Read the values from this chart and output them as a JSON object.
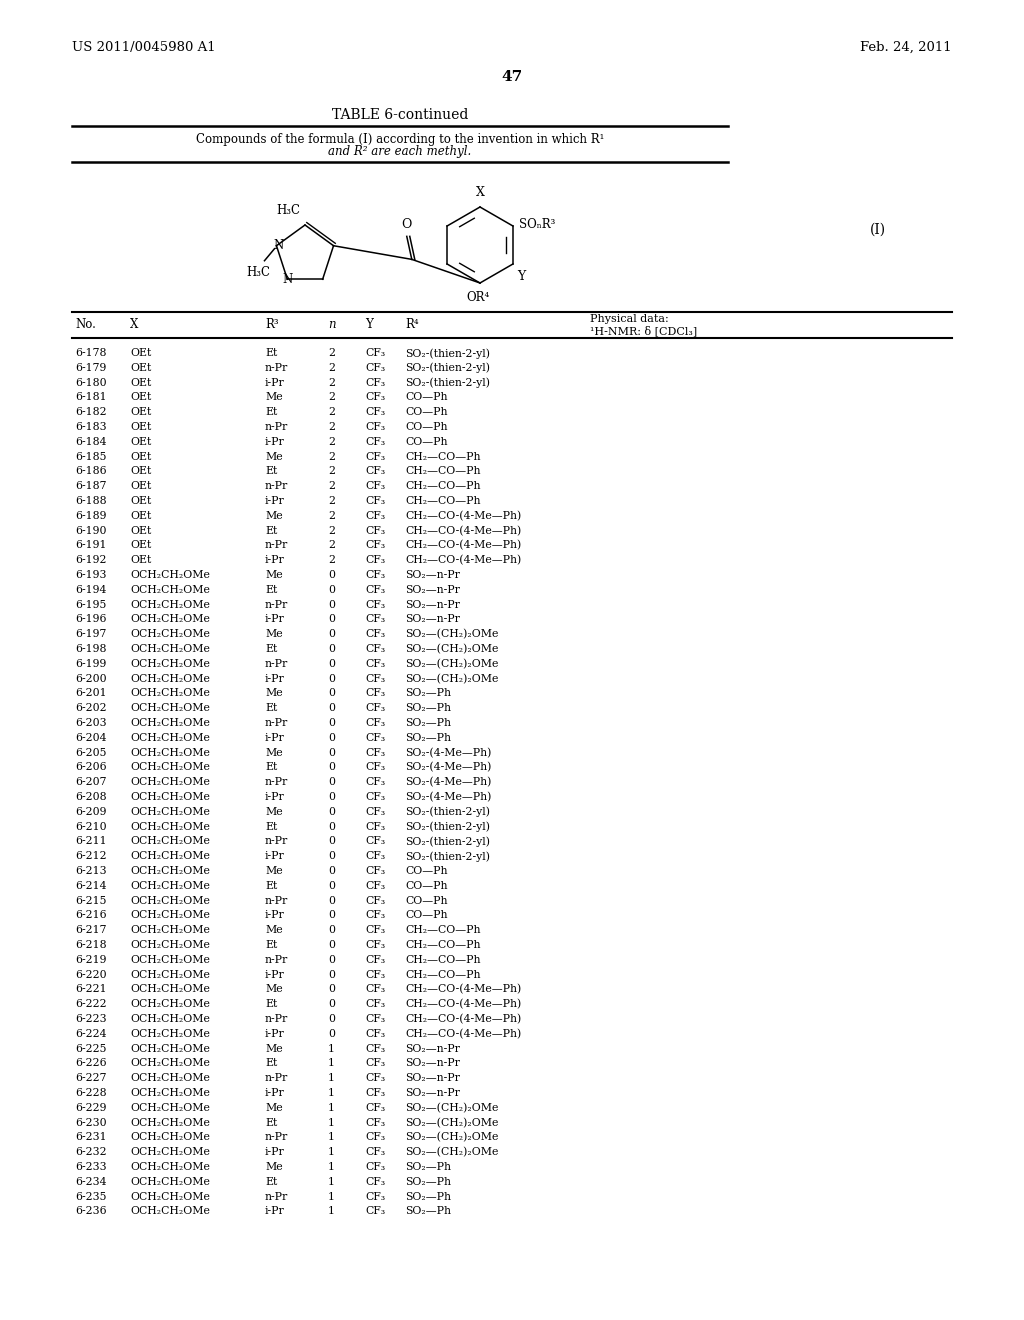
{
  "header_left": "US 2011/0045980 A1",
  "header_right": "Feb. 24, 2011",
  "page_number": "47",
  "table_title": "TABLE 6-continued",
  "table_subtitle1": "Compounds of the formula (I) according to the invention in which R¹",
  "table_subtitle2": "and R² are each methyl.",
  "formula_label": "(I)",
  "rows": [
    [
      "6-178",
      "OEt",
      "Et",
      "2",
      "CF₃",
      "SO₂-(thien-2-yl)"
    ],
    [
      "6-179",
      "OEt",
      "n-Pr",
      "2",
      "CF₃",
      "SO₂-(thien-2-yl)"
    ],
    [
      "6-180",
      "OEt",
      "i-Pr",
      "2",
      "CF₃",
      "SO₂-(thien-2-yl)"
    ],
    [
      "6-181",
      "OEt",
      "Me",
      "2",
      "CF₃",
      "CO—Ph"
    ],
    [
      "6-182",
      "OEt",
      "Et",
      "2",
      "CF₃",
      "CO—Ph"
    ],
    [
      "6-183",
      "OEt",
      "n-Pr",
      "2",
      "CF₃",
      "CO—Ph"
    ],
    [
      "6-184",
      "OEt",
      "i-Pr",
      "2",
      "CF₃",
      "CO—Ph"
    ],
    [
      "6-185",
      "OEt",
      "Me",
      "2",
      "CF₃",
      "CH₂—CO—Ph"
    ],
    [
      "6-186",
      "OEt",
      "Et",
      "2",
      "CF₃",
      "CH₂—CO—Ph"
    ],
    [
      "6-187",
      "OEt",
      "n-Pr",
      "2",
      "CF₃",
      "CH₂—CO—Ph"
    ],
    [
      "6-188",
      "OEt",
      "i-Pr",
      "2",
      "CF₃",
      "CH₂—CO—Ph"
    ],
    [
      "6-189",
      "OEt",
      "Me",
      "2",
      "CF₃",
      "CH₂—CO-(4-Me—Ph)"
    ],
    [
      "6-190",
      "OEt",
      "Et",
      "2",
      "CF₃",
      "CH₂—CO-(4-Me—Ph)"
    ],
    [
      "6-191",
      "OEt",
      "n-Pr",
      "2",
      "CF₃",
      "CH₂—CO-(4-Me—Ph)"
    ],
    [
      "6-192",
      "OEt",
      "i-Pr",
      "2",
      "CF₃",
      "CH₂—CO-(4-Me—Ph)"
    ],
    [
      "6-193",
      "OCH₂CH₂OMe",
      "Me",
      "0",
      "CF₃",
      "SO₂—n-Pr"
    ],
    [
      "6-194",
      "OCH₂CH₂OMe",
      "Et",
      "0",
      "CF₃",
      "SO₂—n-Pr"
    ],
    [
      "6-195",
      "OCH₂CH₂OMe",
      "n-Pr",
      "0",
      "CF₃",
      "SO₂—n-Pr"
    ],
    [
      "6-196",
      "OCH₂CH₂OMe",
      "i-Pr",
      "0",
      "CF₃",
      "SO₂—n-Pr"
    ],
    [
      "6-197",
      "OCH₂CH₂OMe",
      "Me",
      "0",
      "CF₃",
      "SO₂—(CH₂)₂OMe"
    ],
    [
      "6-198",
      "OCH₂CH₂OMe",
      "Et",
      "0",
      "CF₃",
      "SO₂—(CH₂)₂OMe"
    ],
    [
      "6-199",
      "OCH₂CH₂OMe",
      "n-Pr",
      "0",
      "CF₃",
      "SO₂—(CH₂)₂OMe"
    ],
    [
      "6-200",
      "OCH₂CH₂OMe",
      "i-Pr",
      "0",
      "CF₃",
      "SO₂—(CH₂)₂OMe"
    ],
    [
      "6-201",
      "OCH₂CH₂OMe",
      "Me",
      "0",
      "CF₃",
      "SO₂—Ph"
    ],
    [
      "6-202",
      "OCH₂CH₂OMe",
      "Et",
      "0",
      "CF₃",
      "SO₂—Ph"
    ],
    [
      "6-203",
      "OCH₂CH₂OMe",
      "n-Pr",
      "0",
      "CF₃",
      "SO₂—Ph"
    ],
    [
      "6-204",
      "OCH₂CH₂OMe",
      "i-Pr",
      "0",
      "CF₃",
      "SO₂—Ph"
    ],
    [
      "6-205",
      "OCH₂CH₂OMe",
      "Me",
      "0",
      "CF₃",
      "SO₂-(4-Me—Ph)"
    ],
    [
      "6-206",
      "OCH₂CH₂OMe",
      "Et",
      "0",
      "CF₃",
      "SO₂-(4-Me—Ph)"
    ],
    [
      "6-207",
      "OCH₂CH₂OMe",
      "n-Pr",
      "0",
      "CF₃",
      "SO₂-(4-Me—Ph)"
    ],
    [
      "6-208",
      "OCH₂CH₂OMe",
      "i-Pr",
      "0",
      "CF₃",
      "SO₂-(4-Me—Ph)"
    ],
    [
      "6-209",
      "OCH₂CH₂OMe",
      "Me",
      "0",
      "CF₃",
      "SO₂-(thien-2-yl)"
    ],
    [
      "6-210",
      "OCH₂CH₂OMe",
      "Et",
      "0",
      "CF₃",
      "SO₂-(thien-2-yl)"
    ],
    [
      "6-211",
      "OCH₂CH₂OMe",
      "n-Pr",
      "0",
      "CF₃",
      "SO₂-(thien-2-yl)"
    ],
    [
      "6-212",
      "OCH₂CH₂OMe",
      "i-Pr",
      "0",
      "CF₃",
      "SO₂-(thien-2-yl)"
    ],
    [
      "6-213",
      "OCH₂CH₂OMe",
      "Me",
      "0",
      "CF₃",
      "CO—Ph"
    ],
    [
      "6-214",
      "OCH₂CH₂OMe",
      "Et",
      "0",
      "CF₃",
      "CO—Ph"
    ],
    [
      "6-215",
      "OCH₂CH₂OMe",
      "n-Pr",
      "0",
      "CF₃",
      "CO—Ph"
    ],
    [
      "6-216",
      "OCH₂CH₂OMe",
      "i-Pr",
      "0",
      "CF₃",
      "CO—Ph"
    ],
    [
      "6-217",
      "OCH₂CH₂OMe",
      "Me",
      "0",
      "CF₃",
      "CH₂—CO—Ph"
    ],
    [
      "6-218",
      "OCH₂CH₂OMe",
      "Et",
      "0",
      "CF₃",
      "CH₂—CO—Ph"
    ],
    [
      "6-219",
      "OCH₂CH₂OMe",
      "n-Pr",
      "0",
      "CF₃",
      "CH₂—CO—Ph"
    ],
    [
      "6-220",
      "OCH₂CH₂OMe",
      "i-Pr",
      "0",
      "CF₃",
      "CH₂—CO—Ph"
    ],
    [
      "6-221",
      "OCH₂CH₂OMe",
      "Me",
      "0",
      "CF₃",
      "CH₂—CO-(4-Me—Ph)"
    ],
    [
      "6-222",
      "OCH₂CH₂OMe",
      "Et",
      "0",
      "CF₃",
      "CH₂—CO-(4-Me—Ph)"
    ],
    [
      "6-223",
      "OCH₂CH₂OMe",
      "n-Pr",
      "0",
      "CF₃",
      "CH₂—CO-(4-Me—Ph)"
    ],
    [
      "6-224",
      "OCH₂CH₂OMe",
      "i-Pr",
      "0",
      "CF₃",
      "CH₂—CO-(4-Me—Ph)"
    ],
    [
      "6-225",
      "OCH₂CH₂OMe",
      "Me",
      "1",
      "CF₃",
      "SO₂—n-Pr"
    ],
    [
      "6-226",
      "OCH₂CH₂OMe",
      "Et",
      "1",
      "CF₃",
      "SO₂—n-Pr"
    ],
    [
      "6-227",
      "OCH₂CH₂OMe",
      "n-Pr",
      "1",
      "CF₃",
      "SO₂—n-Pr"
    ],
    [
      "6-228",
      "OCH₂CH₂OMe",
      "i-Pr",
      "1",
      "CF₃",
      "SO₂—n-Pr"
    ],
    [
      "6-229",
      "OCH₂CH₂OMe",
      "Me",
      "1",
      "CF₃",
      "SO₂—(CH₂)₂OMe"
    ],
    [
      "6-230",
      "OCH₂CH₂OMe",
      "Et",
      "1",
      "CF₃",
      "SO₂—(CH₂)₂OMe"
    ],
    [
      "6-231",
      "OCH₂CH₂OMe",
      "n-Pr",
      "1",
      "CF₃",
      "SO₂—(CH₂)₂OMe"
    ],
    [
      "6-232",
      "OCH₂CH₂OMe",
      "i-Pr",
      "1",
      "CF₃",
      "SO₂—(CH₂)₂OMe"
    ],
    [
      "6-233",
      "OCH₂CH₂OMe",
      "Me",
      "1",
      "CF₃",
      "SO₂—Ph"
    ],
    [
      "6-234",
      "OCH₂CH₂OMe",
      "Et",
      "1",
      "CF₃",
      "SO₂—Ph"
    ],
    [
      "6-235",
      "OCH₂CH₂OMe",
      "n-Pr",
      "1",
      "CF₃",
      "SO₂—Ph"
    ],
    [
      "6-236",
      "OCH₂CH₂OMe",
      "i-Pr",
      "1",
      "CF₃",
      "SO₂—Ph"
    ]
  ]
}
